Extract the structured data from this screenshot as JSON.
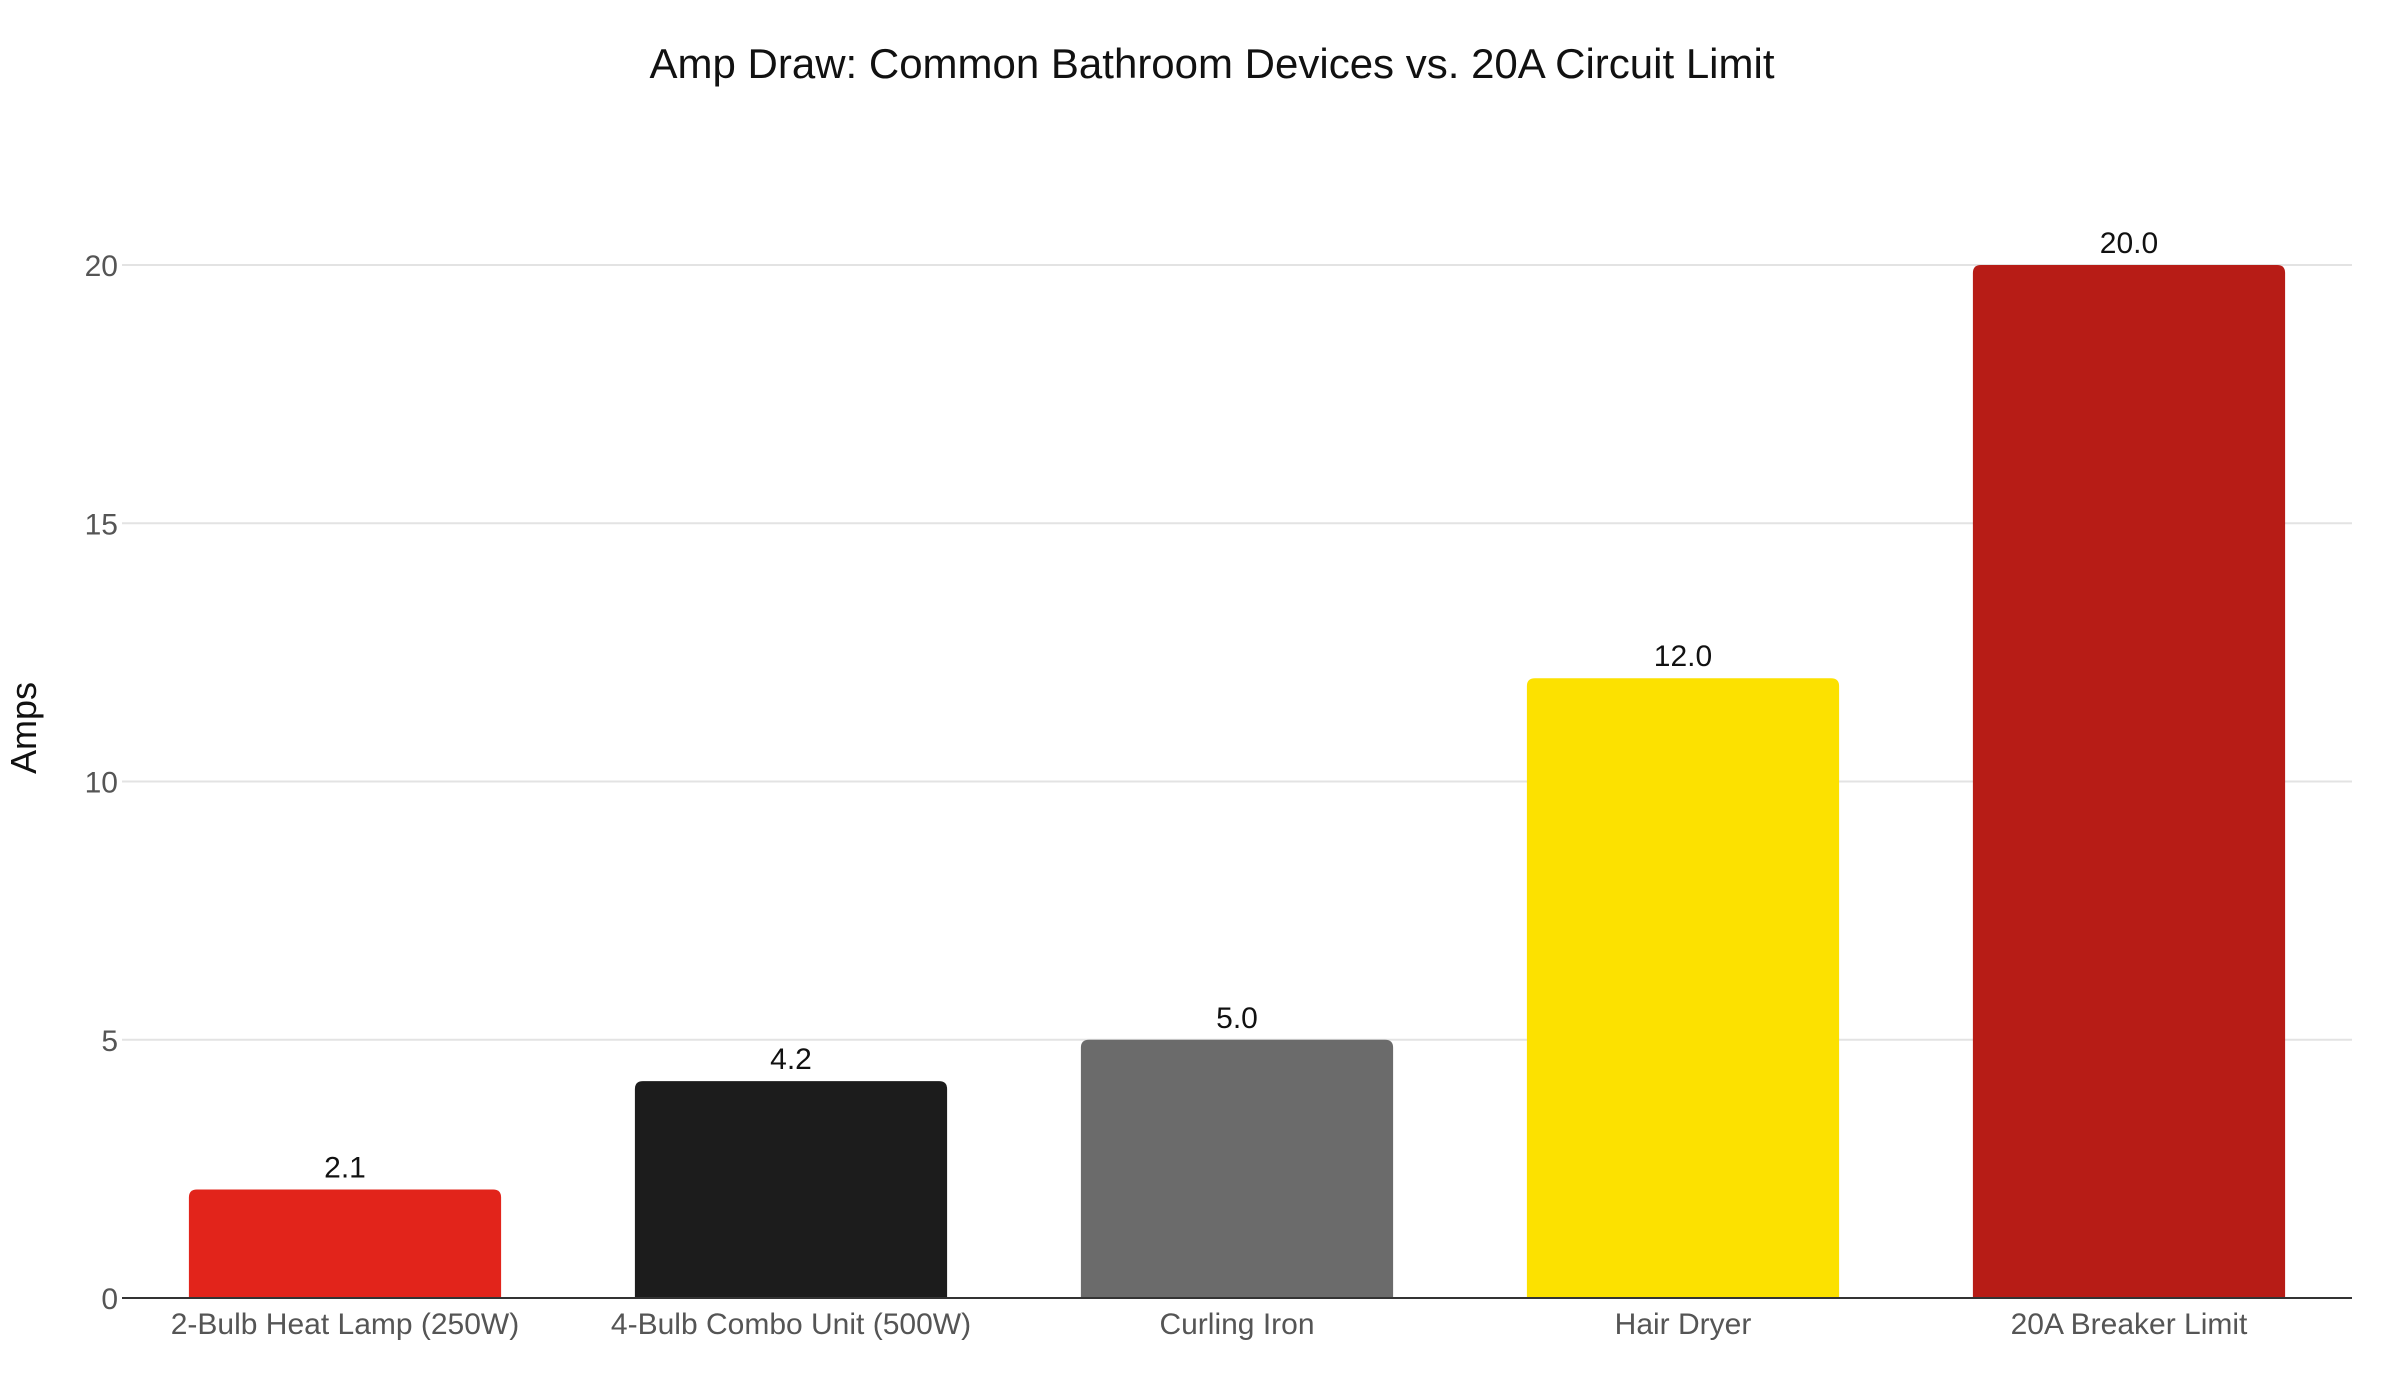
{
  "chart_data": {
    "type": "bar",
    "title": "Amp Draw: Common Bathroom Devices vs. 20A Circuit Limit",
    "xlabel": "",
    "ylabel": "Amps",
    "categories": [
      "2-Bulb Heat Lamp (250W)",
      "4-Bulb Combo Unit (500W)",
      "Curling Iron",
      "Hair Dryer",
      "20A Breaker Limit"
    ],
    "values": [
      2.1,
      4.2,
      5.0,
      12.0,
      20.0
    ],
    "value_labels": [
      "2.1",
      "4.2",
      "5.0",
      "12.0",
      "20.0"
    ],
    "colors": [
      "#e2241b",
      "#1c1c1c",
      "#6b6b6b",
      "#fce100",
      "#b71c16"
    ],
    "yticks": [
      0,
      5,
      10,
      15,
      20
    ],
    "ytick_labels": [
      "0",
      "5",
      "10",
      "15",
      "20"
    ],
    "ylim": [
      0,
      20
    ],
    "grid": true,
    "legend": "none"
  }
}
